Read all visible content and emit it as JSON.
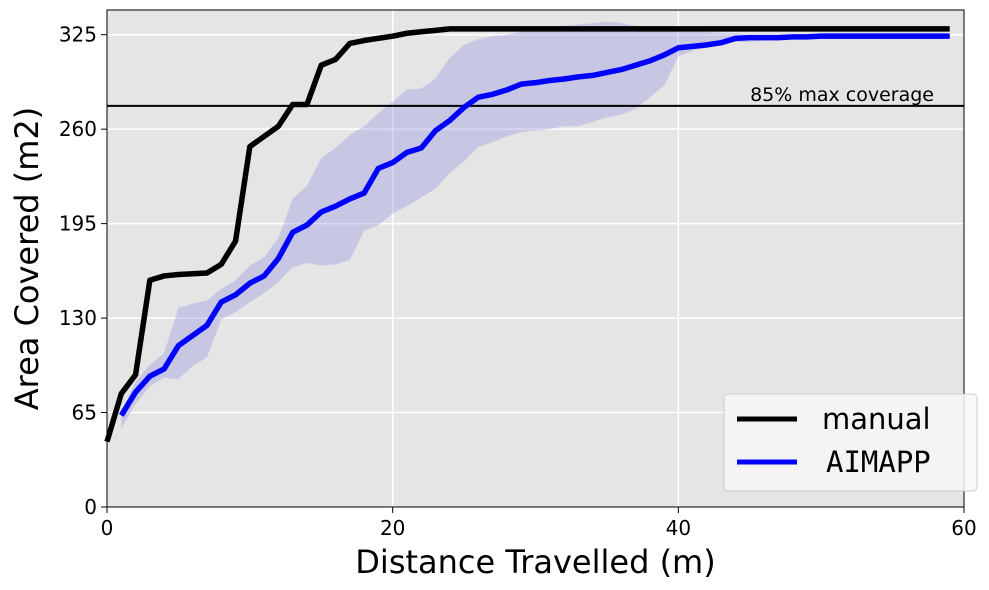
{
  "chart_data": {
    "type": "line",
    "title": "",
    "xlabel": "Distance Travelled (m)",
    "ylabel": "Area Covered (m2)",
    "xlim": [
      0,
      60
    ],
    "ylim": [
      0,
      342
    ],
    "xticks": [
      0,
      20,
      40,
      60
    ],
    "yticks": [
      0,
      65,
      130,
      195,
      260,
      325
    ],
    "grid": true,
    "legend_position": "bottom-right",
    "colors": {
      "manual": "#000000",
      "aimapp": "#0000ff",
      "band": "#8080e0",
      "background": "#e5e5e5",
      "grid": "#ffffff"
    },
    "hline": {
      "y": 276,
      "label": "85% max coverage"
    },
    "series": [
      {
        "name": "manual",
        "x": [
          0,
          1,
          2,
          3,
          4,
          5,
          6,
          7,
          8,
          9,
          10,
          11,
          12,
          13,
          14,
          15,
          16,
          17,
          18,
          19,
          20,
          21,
          22,
          23,
          24,
          30,
          40,
          50,
          59
        ],
        "y": [
          45,
          78,
          91,
          156,
          159,
          160,
          160.5,
          161,
          167,
          183,
          248,
          255,
          262,
          277,
          277,
          304,
          308,
          319,
          321,
          322.5,
          324,
          326,
          327,
          328,
          329,
          329,
          329,
          329,
          329
        ]
      },
      {
        "name": "AIMAPP",
        "x": [
          1,
          2,
          3,
          4,
          5,
          6,
          7,
          8,
          9,
          10,
          11,
          12,
          13,
          14,
          15,
          16,
          17,
          18,
          19,
          20,
          21,
          22,
          23,
          24,
          25,
          26,
          27,
          28,
          29,
          30,
          31,
          32,
          33,
          34,
          35,
          36,
          37,
          38,
          39,
          40,
          41,
          42,
          43,
          44,
          45,
          46,
          47,
          48,
          49,
          50,
          55,
          59
        ],
        "y": [
          63,
          79,
          90,
          95,
          111,
          118,
          125,
          141,
          146,
          154,
          159,
          171,
          189,
          194,
          203,
          207,
          212,
          216,
          233,
          237,
          244,
          247,
          259,
          266,
          275,
          282,
          284,
          287,
          291,
          292,
          293.5,
          294.5,
          296,
          297,
          299,
          301,
          304,
          307,
          311,
          316,
          317,
          318,
          319.5,
          322.5,
          323,
          323,
          323,
          323.5,
          323.5,
          324,
          324,
          324
        ],
        "band_low": [
          54,
          71,
          83,
          89,
          88,
          97,
          103,
          129,
          134,
          141,
          147,
          155,
          165,
          168,
          166,
          167,
          170,
          190,
          194,
          202,
          207,
          213,
          219,
          230,
          238,
          248,
          251,
          255,
          258,
          259,
          260,
          262,
          262,
          265,
          268,
          270,
          274,
          282,
          290,
          310,
          314,
          316,
          318,
          320,
          320,
          321,
          321,
          322,
          322,
          322,
          322,
          322
        ],
        "band_high": [
          66,
          86,
          98,
          106,
          137,
          140,
          142,
          150,
          156,
          166,
          172,
          185,
          212,
          221,
          240,
          247,
          256,
          262,
          271,
          279,
          287,
          288,
          295,
          309,
          318,
          322,
          324,
          325,
          327,
          328,
          330,
          331,
          332,
          333,
          334,
          333,
          331,
          330,
          329,
          327,
          327,
          327,
          326,
          326,
          325,
          325,
          325,
          325,
          325,
          325,
          325,
          325
        ]
      }
    ]
  }
}
